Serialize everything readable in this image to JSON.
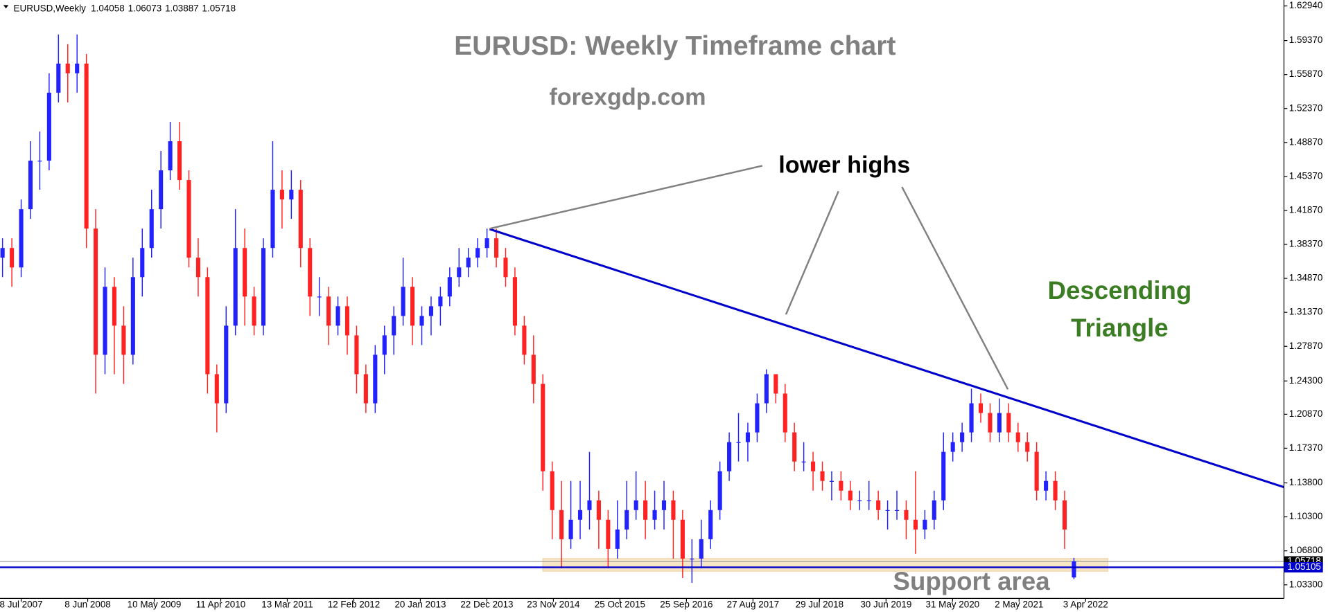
{
  "chart_data": {
    "type": "candlestick",
    "symbol": "EURUSD,Weekly",
    "title": "EURUSD: Weekly Timeframe chart",
    "subtitle": "forexgdp.com",
    "annotation_highs": "lower highs",
    "pattern_lines": [
      "Descending",
      "Triangle"
    ],
    "support_label": "Support area",
    "up_color": "#2222ff",
    "down_color": "#ff2222",
    "trendline": [
      1.3995,
      1.1336
    ],
    "trendline_color": "#0000cc",
    "support_level": 1.05105,
    "support_zone": [
      1.047,
      1.06
    ],
    "ylim": [
      1.019,
      1.6355
    ],
    "yticks": [
      {
        "value": 1.6294,
        "label": "1.62940"
      },
      {
        "value": 1.5937,
        "label": "1.59370"
      },
      {
        "value": 1.5587,
        "label": "1.55870"
      },
      {
        "value": 1.5237,
        "label": "1.52370"
      },
      {
        "value": 1.4887,
        "label": "1.48870"
      },
      {
        "value": 1.4537,
        "label": "1.45370"
      },
      {
        "value": 1.4187,
        "label": "1.41870"
      },
      {
        "value": 1.3837,
        "label": "1.38370"
      },
      {
        "value": 1.3487,
        "label": "1.34870"
      },
      {
        "value": 1.3137,
        "label": "1.31370"
      },
      {
        "value": 1.2787,
        "label": "1.27870"
      },
      {
        "value": 1.243,
        "label": "1.24300"
      },
      {
        "value": 1.2087,
        "label": "1.20870"
      },
      {
        "value": 1.1737,
        "label": "1.17370"
      },
      {
        "value": 1.138,
        "label": "1.13800"
      },
      {
        "value": 1.103,
        "label": "1.10300"
      },
      {
        "value": 1.068,
        "label": "1.06800"
      },
      {
        "value": 1.033,
        "label": "1.03300"
      }
    ],
    "categories": [
      "8 Jul 2007",
      "8 Jun 2008",
      "10 May 2009",
      "11 Apr 2010",
      "13 Mar 2011",
      "12 Feb 2012",
      "20 Jan 2013",
      "22 Dec 2013",
      "23 Nov 2014",
      "25 Oct 2015",
      "25 Sep 2016",
      "27 Aug 2017",
      "29 Jul 2018",
      "30 Jun 2019",
      "31 May 2020",
      "2 May 2021",
      "3 Apr 2022"
    ],
    "support_label_value": {
      "value": 1.05105,
      "label": "1.05105"
    },
    "candles": [
      [
        1.37,
        1.39,
        1.35,
        1.38
      ],
      [
        1.38,
        1.39,
        1.34,
        1.36
      ],
      [
        1.36,
        1.43,
        1.35,
        1.42
      ],
      [
        1.42,
        1.49,
        1.41,
        1.47
      ],
      [
        1.47,
        1.5,
        1.44,
        1.47
      ],
      [
        1.47,
        1.56,
        1.46,
        1.54
      ],
      [
        1.54,
        1.6,
        1.53,
        1.57
      ],
      [
        1.57,
        1.59,
        1.53,
        1.56
      ],
      [
        1.56,
        1.6,
        1.54,
        1.57
      ],
      [
        1.57,
        1.58,
        1.38,
        1.4
      ],
      [
        1.4,
        1.42,
        1.23,
        1.27
      ],
      [
        1.27,
        1.36,
        1.25,
        1.34
      ],
      [
        1.34,
        1.35,
        1.25,
        1.3
      ],
      [
        1.3,
        1.32,
        1.24,
        1.27
      ],
      [
        1.27,
        1.37,
        1.26,
        1.35
      ],
      [
        1.35,
        1.4,
        1.33,
        1.38
      ],
      [
        1.38,
        1.44,
        1.37,
        1.42
      ],
      [
        1.42,
        1.48,
        1.4,
        1.46
      ],
      [
        1.46,
        1.51,
        1.45,
        1.49
      ],
      [
        1.49,
        1.51,
        1.44,
        1.45
      ],
      [
        1.45,
        1.46,
        1.36,
        1.37
      ],
      [
        1.37,
        1.39,
        1.33,
        1.35
      ],
      [
        1.35,
        1.36,
        1.23,
        1.25
      ],
      [
        1.25,
        1.26,
        1.19,
        1.22
      ],
      [
        1.22,
        1.32,
        1.21,
        1.3
      ],
      [
        1.3,
        1.42,
        1.29,
        1.38
      ],
      [
        1.38,
        1.4,
        1.3,
        1.33
      ],
      [
        1.33,
        1.34,
        1.29,
        1.3
      ],
      [
        1.3,
        1.39,
        1.29,
        1.38
      ],
      [
        1.38,
        1.49,
        1.37,
        1.44
      ],
      [
        1.44,
        1.46,
        1.4,
        1.43
      ],
      [
        1.43,
        1.46,
        1.41,
        1.44
      ],
      [
        1.44,
        1.45,
        1.36,
        1.38
      ],
      [
        1.38,
        1.39,
        1.31,
        1.33
      ],
      [
        1.33,
        1.35,
        1.31,
        1.33
      ],
      [
        1.33,
        1.34,
        1.28,
        1.3
      ],
      [
        1.3,
        1.33,
        1.29,
        1.32
      ],
      [
        1.32,
        1.33,
        1.27,
        1.29
      ],
      [
        1.29,
        1.3,
        1.23,
        1.25
      ],
      [
        1.25,
        1.26,
        1.21,
        1.22
      ],
      [
        1.22,
        1.28,
        1.21,
        1.27
      ],
      [
        1.27,
        1.3,
        1.25,
        1.29
      ],
      [
        1.29,
        1.32,
        1.27,
        1.31
      ],
      [
        1.31,
        1.37,
        1.3,
        1.34
      ],
      [
        1.34,
        1.35,
        1.28,
        1.3
      ],
      [
        1.3,
        1.32,
        1.28,
        1.31
      ],
      [
        1.31,
        1.33,
        1.29,
        1.32
      ],
      [
        1.32,
        1.34,
        1.3,
        1.33
      ],
      [
        1.33,
        1.36,
        1.32,
        1.35
      ],
      [
        1.35,
        1.38,
        1.34,
        1.36
      ],
      [
        1.36,
        1.38,
        1.35,
        1.37
      ],
      [
        1.37,
        1.39,
        1.36,
        1.38
      ],
      [
        1.38,
        1.4,
        1.37,
        1.39
      ],
      [
        1.39,
        1.4,
        1.36,
        1.37
      ],
      [
        1.37,
        1.38,
        1.34,
        1.35
      ],
      [
        1.35,
        1.36,
        1.29,
        1.3
      ],
      [
        1.3,
        1.31,
        1.26,
        1.27
      ],
      [
        1.27,
        1.29,
        1.22,
        1.24
      ],
      [
        1.24,
        1.25,
        1.13,
        1.15
      ],
      [
        1.15,
        1.16,
        1.08,
        1.11
      ],
      [
        1.11,
        1.14,
        1.05,
        1.08
      ],
      [
        1.08,
        1.14,
        1.07,
        1.1
      ],
      [
        1.1,
        1.14,
        1.08,
        1.11
      ],
      [
        1.11,
        1.17,
        1.09,
        1.12
      ],
      [
        1.12,
        1.13,
        1.07,
        1.1
      ],
      [
        1.1,
        1.11,
        1.05,
        1.07
      ],
      [
        1.07,
        1.12,
        1.06,
        1.09
      ],
      [
        1.09,
        1.14,
        1.08,
        1.11
      ],
      [
        1.11,
        1.15,
        1.1,
        1.12
      ],
      [
        1.12,
        1.14,
        1.08,
        1.1
      ],
      [
        1.1,
        1.13,
        1.09,
        1.11
      ],
      [
        1.11,
        1.14,
        1.09,
        1.12
      ],
      [
        1.12,
        1.13,
        1.06,
        1.1
      ],
      [
        1.1,
        1.11,
        1.04,
        1.06
      ],
      [
        1.06,
        1.08,
        1.035,
        1.06
      ],
      [
        1.06,
        1.1,
        1.05,
        1.08
      ],
      [
        1.08,
        1.12,
        1.07,
        1.11
      ],
      [
        1.11,
        1.16,
        1.1,
        1.15
      ],
      [
        1.15,
        1.19,
        1.14,
        1.18
      ],
      [
        1.18,
        1.21,
        1.16,
        1.18
      ],
      [
        1.18,
        1.2,
        1.16,
        1.19
      ],
      [
        1.19,
        1.23,
        1.18,
        1.22
      ],
      [
        1.22,
        1.255,
        1.21,
        1.25
      ],
      [
        1.25,
        1.25,
        1.22,
        1.23
      ],
      [
        1.23,
        1.24,
        1.18,
        1.19
      ],
      [
        1.19,
        1.2,
        1.15,
        1.16
      ],
      [
        1.16,
        1.18,
        1.15,
        1.16
      ],
      [
        1.16,
        1.17,
        1.13,
        1.15
      ],
      [
        1.15,
        1.16,
        1.13,
        1.14
      ],
      [
        1.14,
        1.15,
        1.12,
        1.14
      ],
      [
        1.14,
        1.15,
        1.12,
        1.13
      ],
      [
        1.13,
        1.14,
        1.11,
        1.12
      ],
      [
        1.12,
        1.13,
        1.11,
        1.12
      ],
      [
        1.12,
        1.14,
        1.11,
        1.12
      ],
      [
        1.12,
        1.13,
        1.1,
        1.11
      ],
      [
        1.11,
        1.12,
        1.09,
        1.11
      ],
      [
        1.11,
        1.13,
        1.1,
        1.11
      ],
      [
        1.11,
        1.12,
        1.08,
        1.1
      ],
      [
        1.1,
        1.15,
        1.065,
        1.09
      ],
      [
        1.09,
        1.11,
        1.08,
        1.1
      ],
      [
        1.1,
        1.13,
        1.09,
        1.12
      ],
      [
        1.12,
        1.19,
        1.11,
        1.17
      ],
      [
        1.17,
        1.19,
        1.16,
        1.18
      ],
      [
        1.18,
        1.2,
        1.17,
        1.19
      ],
      [
        1.19,
        1.235,
        1.18,
        1.22
      ],
      [
        1.22,
        1.23,
        1.2,
        1.21
      ],
      [
        1.21,
        1.22,
        1.18,
        1.19
      ],
      [
        1.19,
        1.225,
        1.18,
        1.21
      ],
      [
        1.21,
        1.22,
        1.18,
        1.19
      ],
      [
        1.19,
        1.2,
        1.17,
        1.18
      ],
      [
        1.18,
        1.19,
        1.16,
        1.17
      ],
      [
        1.17,
        1.18,
        1.12,
        1.13
      ],
      [
        1.13,
        1.15,
        1.12,
        1.14
      ],
      [
        1.14,
        1.15,
        1.11,
        1.12
      ],
      [
        1.12,
        1.13,
        1.07,
        1.09
      ],
      [
        1.04058,
        1.06073,
        1.03887,
        1.05718
      ]
    ]
  }
}
